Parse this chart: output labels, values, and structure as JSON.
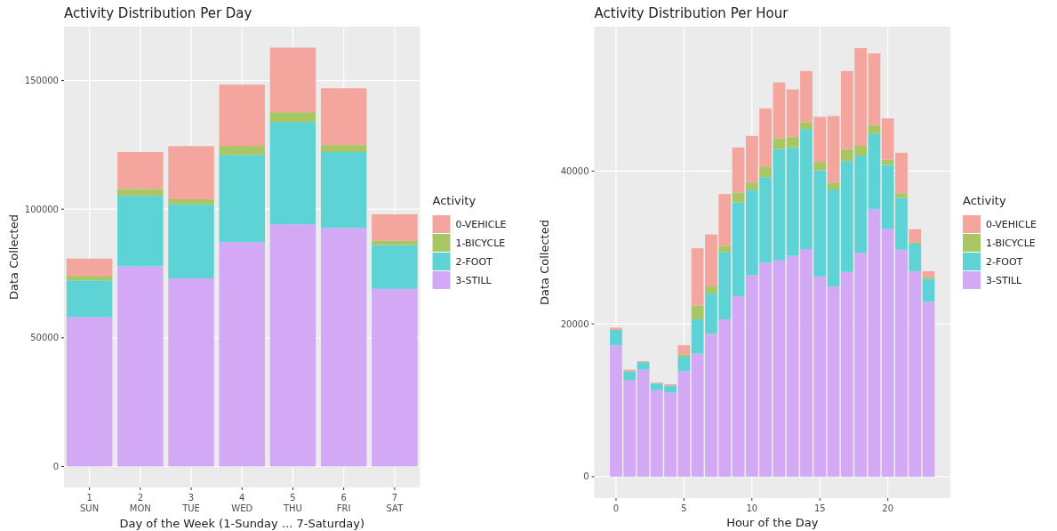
{
  "chart_data": [
    {
      "type": "bar",
      "title": "Activity Distribution Per Day",
      "xlabel": "Day of the Week (1-Sunday ... 7-Saturday)",
      "ylabel": "Data Collected",
      "legend_title": "Activity",
      "categories": [
        "1\nSUN",
        "2\nMON",
        "3\nTUE",
        "4\nWED",
        "5\nTHU",
        "6\nFRI",
        "7\nSAT"
      ],
      "stacked": true,
      "ylim": [
        -8140,
        170940
      ],
      "yticks": [
        0,
        50000,
        100000,
        150000
      ],
      "grid": true,
      "legend": "right",
      "series": [
        {
          "name": "3-STILL",
          "color": "#d3a9f5",
          "values": [
            58000,
            77800,
            73100,
            87200,
            94100,
            92700,
            69000
          ]
        },
        {
          "name": "2-FOOT",
          "color": "#5ed3d6",
          "values": [
            14300,
            27400,
            28800,
            33900,
            39800,
            29500,
            17000
          ]
        },
        {
          "name": "1-BICYCLE",
          "color": "#a8c764",
          "values": [
            1800,
            2700,
            2000,
            3500,
            3800,
            2700,
            1700
          ]
        },
        {
          "name": "0-VEHICLE",
          "color": "#f4a59e",
          "values": [
            6700,
            14300,
            20600,
            23800,
            25100,
            22100,
            10300
          ]
        }
      ]
    },
    {
      "type": "bar",
      "title": "Activity Distribution Per Hour",
      "xlabel": "Hour of the Day",
      "ylabel": "Data Collected",
      "legend_title": "Activity",
      "x": [
        0,
        1,
        2,
        3,
        4,
        5,
        6,
        7,
        8,
        9,
        10,
        11,
        12,
        13,
        14,
        15,
        16,
        17,
        18,
        19,
        20,
        21,
        22,
        23
      ],
      "stacked": true,
      "xlim": [
        -1.6,
        24.6
      ],
      "xticks": [
        0,
        5,
        10,
        15,
        20
      ],
      "ylim": [
        -2805,
        58905
      ],
      "yticks": [
        0,
        20000,
        40000
      ],
      "grid": true,
      "legend": "right",
      "series": [
        {
          "name": "3-STILL",
          "color": "#d3a9f5",
          "values": [
            17200,
            12600,
            14000,
            11300,
            11000,
            13800,
            16100,
            18700,
            20600,
            23600,
            26400,
            28000,
            28300,
            28900,
            29800,
            26200,
            24900,
            26800,
            29300,
            35000,
            32400,
            29700,
            26900,
            22900
          ]
        },
        {
          "name": "2-FOOT",
          "color": "#5ed3d6",
          "values": [
            2000,
            1200,
            1000,
            900,
            900,
            1900,
            4500,
            5300,
            8800,
            12300,
            11100,
            11200,
            14600,
            14200,
            15700,
            13900,
            12700,
            14500,
            12700,
            9900,
            8400,
            6800,
            3600,
            3000
          ]
        },
        {
          "name": "1-BICYCLE",
          "color": "#a8c764",
          "values": [
            0,
            0,
            0,
            0,
            0,
            300,
            1800,
            900,
            800,
            1300,
            1000,
            1400,
            1400,
            1400,
            900,
            1100,
            900,
            1600,
            1300,
            1100,
            700,
            600,
            200,
            200
          ]
        },
        {
          "name": "0-VEHICLE",
          "color": "#f4a59e",
          "values": [
            300,
            200,
            100,
            100,
            200,
            1200,
            7500,
            6800,
            6800,
            5900,
            6100,
            7600,
            7300,
            6200,
            6700,
            5900,
            8700,
            10200,
            12800,
            9400,
            5400,
            5300,
            1700,
            800
          ]
        }
      ]
    }
  ]
}
